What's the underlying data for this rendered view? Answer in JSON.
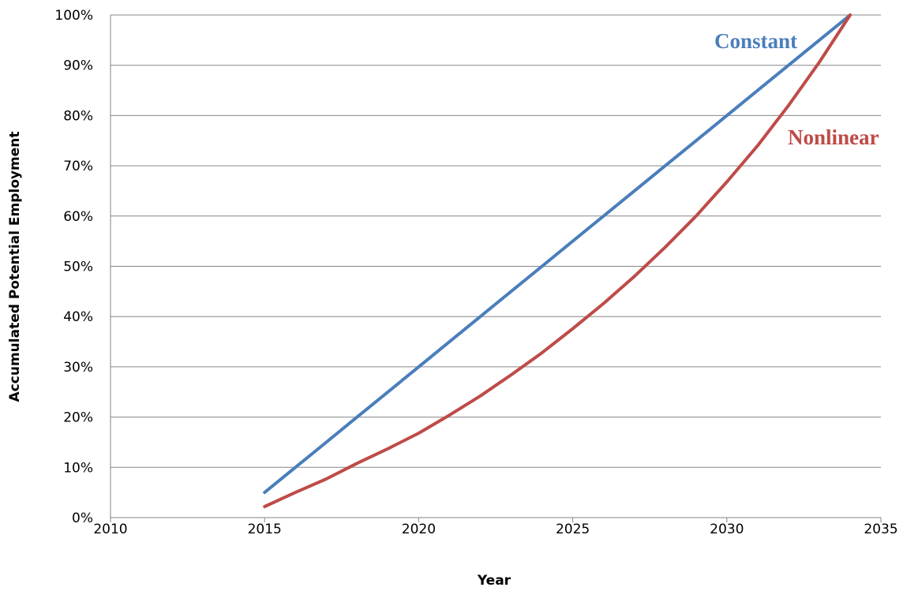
{
  "chart_data": {
    "type": "line",
    "title": "",
    "xlabel": "Year",
    "ylabel": "Accumulated Potential Employment",
    "xlim": [
      2010,
      2035
    ],
    "ylim": [
      0,
      100
    ],
    "x_ticks": [
      "2010",
      "2015",
      "2020",
      "2025",
      "2030",
      "2035"
    ],
    "y_ticks": [
      "0%",
      "10%",
      "20%",
      "30%",
      "40%",
      "50%",
      "60%",
      "70%",
      "80%",
      "90%",
      "100%"
    ],
    "grid": "horizontal",
    "series": [
      {
        "name": "Constant",
        "color": "#4a7ebb",
        "x": [
          2015,
          2016,
          2017,
          2018,
          2019,
          2020,
          2021,
          2022,
          2023,
          2024,
          2025,
          2026,
          2027,
          2028,
          2029,
          2030,
          2031,
          2032,
          2033,
          2034
        ],
        "y": [
          5,
          10,
          15,
          20,
          25,
          30,
          35,
          40,
          45,
          50,
          55,
          60,
          65,
          70,
          75,
          80,
          85,
          90,
          95,
          100
        ]
      },
      {
        "name": "Nonlinear",
        "color": "#be4b48",
        "x": [
          2015,
          2016,
          2017,
          2018,
          2019,
          2020,
          2021,
          2022,
          2023,
          2024,
          2025,
          2026,
          2027,
          2028,
          2029,
          2030,
          2031,
          2032,
          2033,
          2034
        ],
        "y": [
          2.2,
          5.0,
          7.7,
          10.8,
          13.7,
          16.8,
          20.4,
          24.2,
          28.4,
          32.8,
          37.6,
          42.6,
          48.0,
          53.8,
          60.0,
          66.8,
          74.0,
          82.0,
          90.6,
          100
        ]
      }
    ]
  }
}
